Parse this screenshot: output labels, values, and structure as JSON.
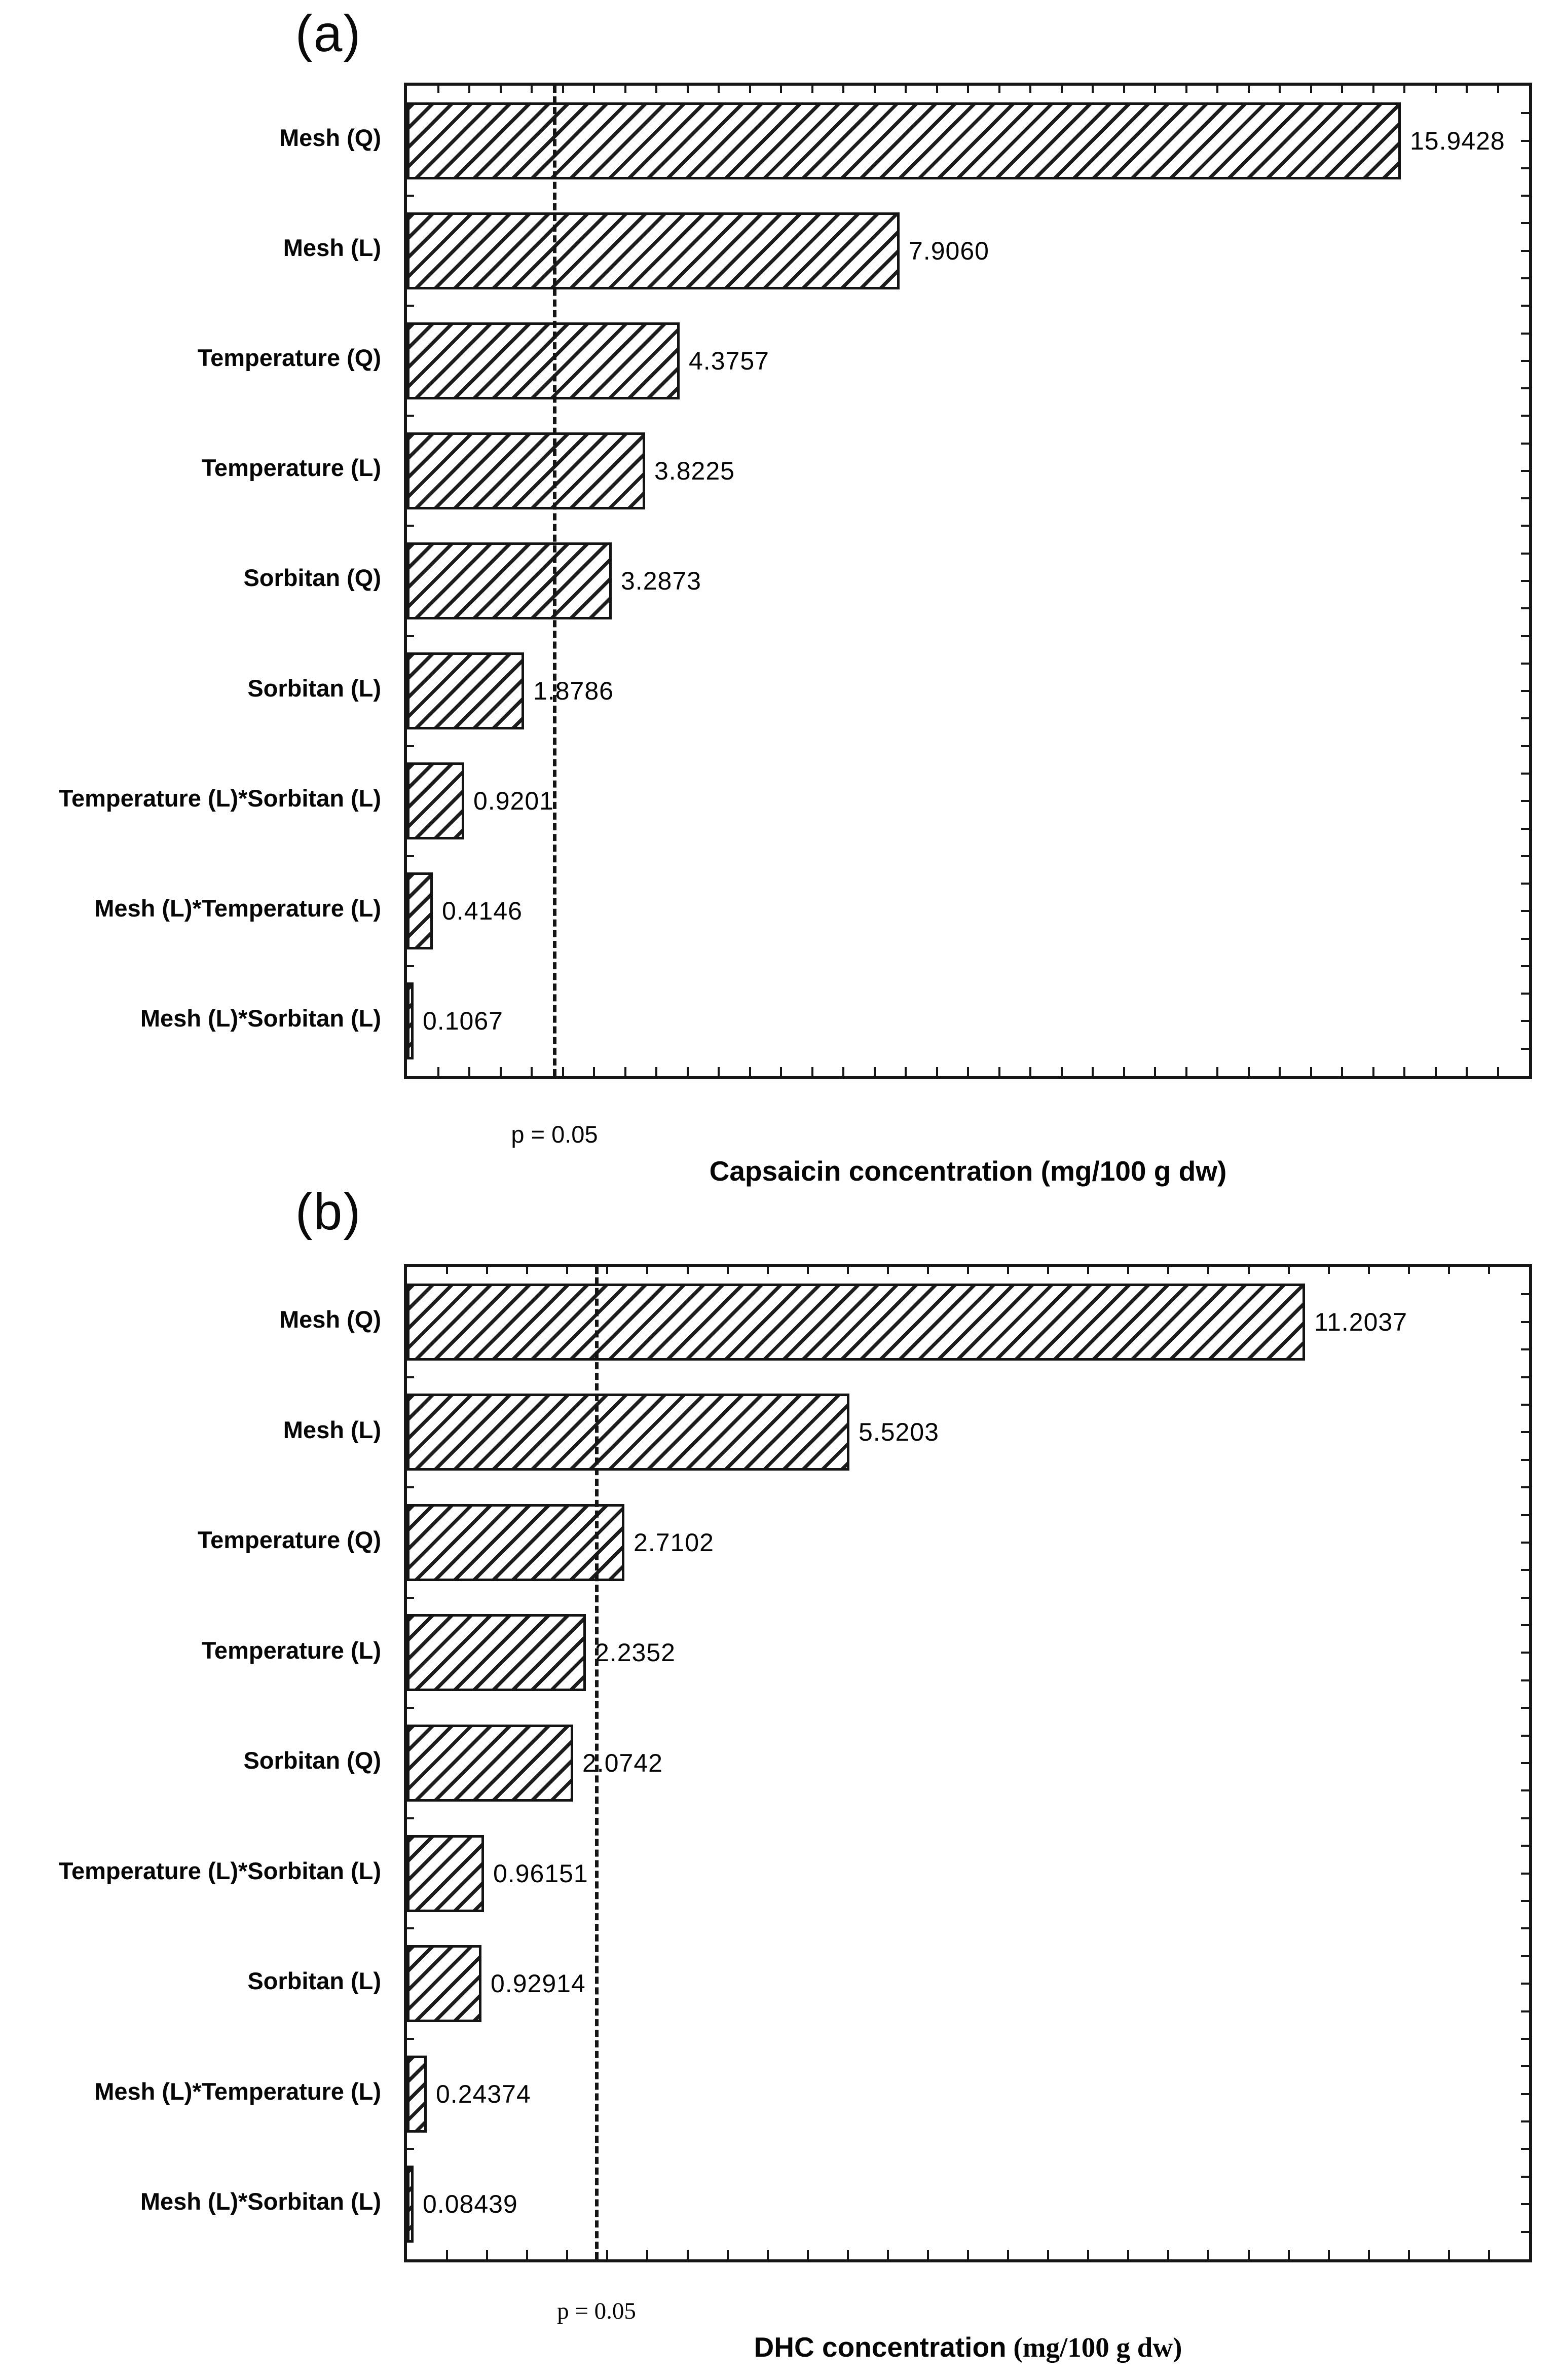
{
  "page": {
    "background_color": "#ffffff",
    "ink_color": "#161616",
    "bar_fill": "#ffffff",
    "bar_hatch_color": "#1c1c1c",
    "bar_hatch_style": "diagonal-forward-slash"
  },
  "chart_data": [
    {
      "type": "bar",
      "orientation": "horizontal",
      "panel_label": "(a)",
      "title": "Capsaicin concentration (mg/100 g dw)",
      "xlabel_main": "Capsaicin concentration",
      "xlabel_unit": " (mg/100 g dw)",
      "ylabel": "",
      "grid": false,
      "legend": "none",
      "categories": [
        "Mesh (Q)",
        "Mesh (L)",
        "Temperature (Q)",
        "Temperature (L)",
        "Sorbitan (Q)",
        "Sorbitan (L)",
        "Temperature (L)*Sorbitan (L)",
        "Mesh (L)*Temperature (L)",
        "Mesh (L)*Sorbitan (L)"
      ],
      "values": [
        15.9428,
        7.906,
        4.3757,
        3.8225,
        3.2873,
        1.8786,
        0.9201,
        0.4146,
        0.1067
      ],
      "value_labels": [
        "15.9428",
        "7.9060",
        "4.3757",
        "3.8225",
        "3.2873",
        "1.8786",
        "0.9201",
        "0.4146",
        "0.1067"
      ],
      "xlim": [
        0,
        18
      ],
      "reference_line": {
        "value": 2.365,
        "label": "p = 0.05",
        "style": "dashed"
      }
    },
    {
      "type": "bar",
      "orientation": "horizontal",
      "panel_label": "(b)",
      "title": "DHC concentration (mg/100 g dw)",
      "xlabel_main": "DHC concentration",
      "xlabel_unit": " (mg/100 g dw)",
      "ylabel": "",
      "grid": false,
      "legend": "none",
      "categories": [
        "Mesh (Q)",
        "Mesh (L)",
        "Temperature (Q)",
        "Temperature (L)",
        "Sorbitan (Q)",
        "Temperature (L)*Sorbitan (L)",
        "Sorbitan (L)",
        "Mesh (L)*Temperature (L)",
        "Mesh (L)*Sorbitan (L)"
      ],
      "values": [
        11.2037,
        5.5203,
        2.7102,
        2.2352,
        2.0742,
        0.96151,
        0.92914,
        0.24374,
        0.08439
      ],
      "value_labels": [
        "11.2037",
        "5.5203",
        "2.7102",
        "2.2352",
        "2.0742",
        "0.96151",
        "0.92914",
        "0.24374",
        "0.08439"
      ],
      "xlim": [
        0,
        14
      ],
      "reference_line": {
        "value": 2.365,
        "label": "p = 0.05",
        "style": "dashed"
      }
    }
  ]
}
